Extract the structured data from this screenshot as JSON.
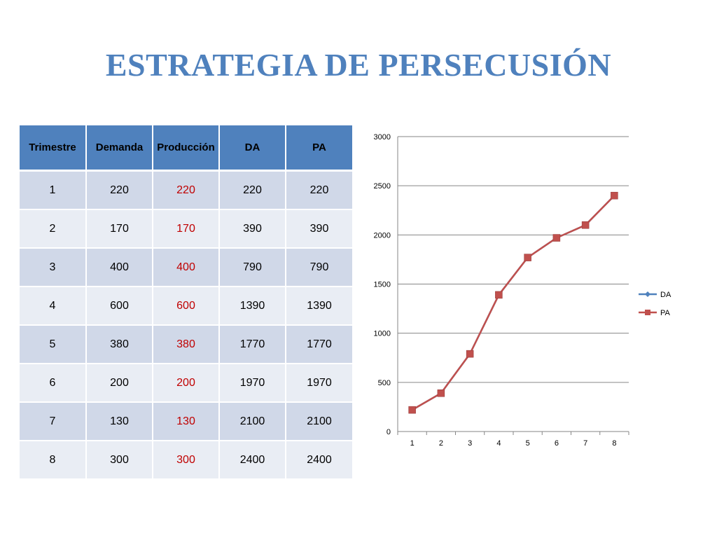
{
  "slide": {
    "title": "ESTRATEGIA DE PERSECUSIÓN"
  },
  "table": {
    "headers": [
      "Trimestre",
      "Demanda",
      "Producción",
      "DA",
      "PA"
    ],
    "rows": [
      [
        "1",
        "220",
        "220",
        "220",
        "220"
      ],
      [
        "2",
        "170",
        "170",
        "390",
        "390"
      ],
      [
        "3",
        "400",
        "400",
        "790",
        "790"
      ],
      [
        "4",
        "600",
        "600",
        "1390",
        "1390"
      ],
      [
        "5",
        "380",
        "380",
        "1770",
        "1770"
      ],
      [
        "6",
        "200",
        "200",
        "1970",
        "1970"
      ],
      [
        "7",
        "130",
        "130",
        "2100",
        "2100"
      ],
      [
        "8",
        "300",
        "300",
        "2400",
        "2400"
      ]
    ],
    "colors": {
      "header_bg": "#4f81bd",
      "row_odd_bg": "#d0d8e8",
      "row_even_bg": "#e9edf4",
      "production_text": "#c00000"
    }
  },
  "chart_data": {
    "type": "line",
    "title": "",
    "xlabel": "",
    "ylabel": "",
    "categories": [
      "1",
      "2",
      "3",
      "4",
      "5",
      "6",
      "7",
      "8"
    ],
    "series": [
      {
        "name": "DA",
        "values": [
          220,
          390,
          790,
          1390,
          1770,
          1970,
          2100,
          2400
        ],
        "color": "#4f81bd",
        "marker": "diamond"
      },
      {
        "name": "PA",
        "values": [
          220,
          390,
          790,
          1390,
          1770,
          1970,
          2100,
          2400
        ],
        "color": "#c0504d",
        "marker": "square"
      }
    ],
    "ylim": [
      0,
      3000
    ],
    "yticks": [
      0,
      500,
      1000,
      1500,
      2000,
      2500,
      3000
    ],
    "grid": true,
    "legend_position": "right"
  }
}
